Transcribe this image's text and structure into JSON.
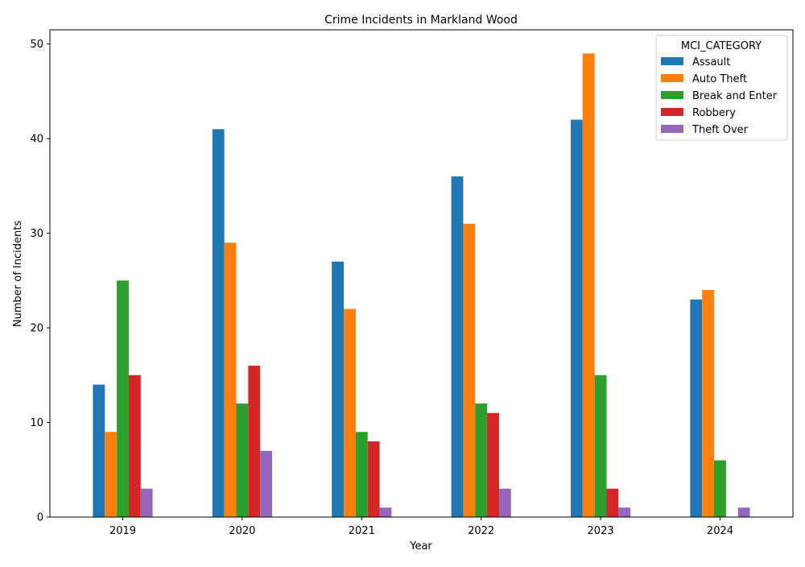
{
  "chart_data": {
    "type": "bar",
    "title": "Crime Incidents in Markland Wood",
    "xlabel": "Year",
    "ylabel": "Number of Incidents",
    "categories": [
      "2019",
      "2020",
      "2021",
      "2022",
      "2023",
      "2024"
    ],
    "ylim": [
      0,
      51.5
    ],
    "yticks": [
      0,
      10,
      20,
      30,
      40,
      50
    ],
    "grid": false,
    "legend": {
      "title": "MCI_CATEGORY",
      "placement": "top-right"
    },
    "series": [
      {
        "name": "Assault",
        "color": "#1f77b4",
        "values": [
          14,
          41,
          27,
          36,
          42,
          23
        ]
      },
      {
        "name": "Auto Theft",
        "color": "#ff7f0e",
        "values": [
          9,
          29,
          22,
          31,
          49,
          24
        ]
      },
      {
        "name": "Break and Enter",
        "color": "#2ca02c",
        "values": [
          25,
          12,
          9,
          12,
          15,
          6
        ]
      },
      {
        "name": "Robbery",
        "color": "#d62728",
        "values": [
          15,
          16,
          8,
          11,
          3,
          0
        ]
      },
      {
        "name": "Theft Over",
        "color": "#9467bd",
        "values": [
          3,
          7,
          1,
          3,
          1,
          1
        ]
      }
    ]
  }
}
